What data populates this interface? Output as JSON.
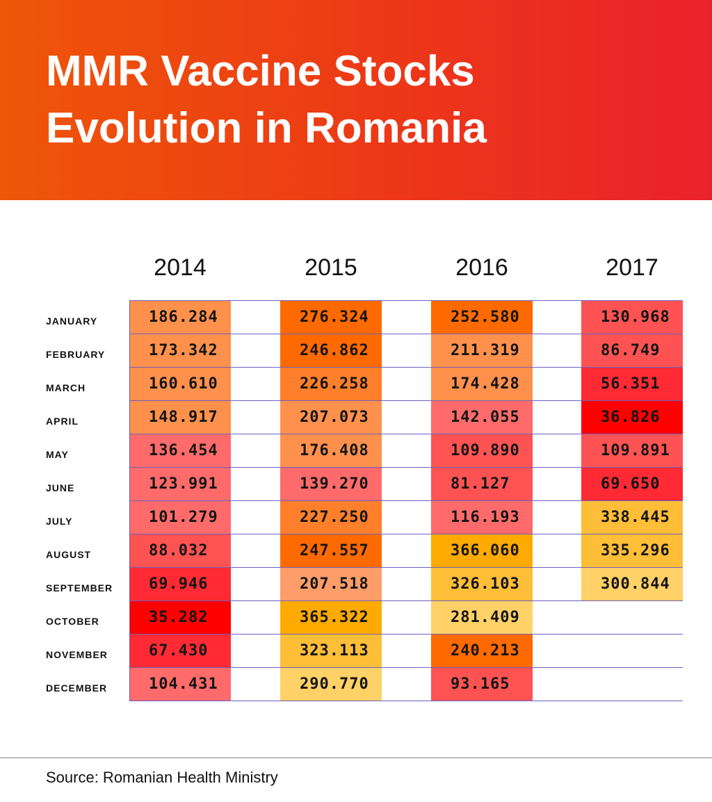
{
  "header": {
    "title_line_1": "MMR Vaccine Stocks",
    "title_line_2": "Evolution in Romania",
    "gradient_start": "#ee5609",
    "gradient_end": "#ea212b"
  },
  "footer": {
    "source": "Source: Romanian Health Ministry"
  },
  "colors": {
    "very_low": "#ff0000",
    "low": "#ff2a33",
    "medium_low": "#ff5353",
    "medium": "#ff6b6b",
    "medium_high": "#ff914d",
    "high": "#ff7f2a",
    "very_high": "#ff6a00",
    "restock_high": "#ffaa00",
    "restock_medium": "#ffbe38",
    "restock_low": "#ffd166",
    "light_orange": "#ff9d6a",
    "grid_line": "#6b5fbf"
  },
  "chart_data": {
    "type": "table",
    "title": "MMR Vaccine Stocks Evolution in Romania",
    "columns": [
      "2014",
      "2015",
      "2016",
      "2017"
    ],
    "rows": [
      "JANUARY",
      "FEBRUARY",
      "MARCH",
      "APRIL",
      "MAY",
      "JUNE",
      "JULY",
      "AUGUST",
      "SEPTEMBER",
      "OCTOBER",
      "NOVEMBER",
      "DECEMBER"
    ],
    "values": [
      [
        "186.284",
        "276.324",
        "252.580",
        "130.968"
      ],
      [
        "173.342",
        "246.862",
        "211.319",
        "86.749"
      ],
      [
        "160.610",
        "226.258",
        "174.428",
        "56.351"
      ],
      [
        "148.917",
        "207.073",
        "142.055",
        "36.826"
      ],
      [
        "136.454",
        "176.408",
        "109.890",
        "109.891"
      ],
      [
        "123.991",
        "139.270",
        "81.127",
        "69.650"
      ],
      [
        "101.279",
        "227.250",
        "116.193",
        "338.445"
      ],
      [
        "88.032",
        "247.557",
        "366.060",
        "335.296"
      ],
      [
        "69.946",
        "207.518",
        "326.103",
        "300.844"
      ],
      [
        "35.282",
        "365.322",
        "281.409",
        null
      ],
      [
        "67.430",
        "323.113",
        "240.213",
        null
      ],
      [
        "104.431",
        "290.770",
        "93.165",
        null
      ]
    ],
    "cell_colors": [
      [
        "#ff914d",
        "#ff6a00",
        "#ff6a00",
        "#ff5353"
      ],
      [
        "#ff914d",
        "#ff6a00",
        "#ff914d",
        "#ff5353"
      ],
      [
        "#ff914d",
        "#ff7f2a",
        "#ff914d",
        "#ff2a33"
      ],
      [
        "#ff914d",
        "#ff914d",
        "#ff6b6b",
        "#ff0000"
      ],
      [
        "#ff6b6b",
        "#ff914d",
        "#ff5353",
        "#ff5353"
      ],
      [
        "#ff6b6b",
        "#ff6b6b",
        "#ff5353",
        "#ff2a33"
      ],
      [
        "#ff6b6b",
        "#ff7f2a",
        "#ff6b6b",
        "#ffbe38"
      ],
      [
        "#ff5353",
        "#ff6a00",
        "#ffaa00",
        "#ffbe38"
      ],
      [
        "#ff2a33",
        "#ff9d6a",
        "#ffbe38",
        "#ffd166"
      ],
      [
        "#ff0000",
        "#ffaa00",
        "#ffd166",
        null
      ],
      [
        "#ff2a33",
        "#ffbe38",
        "#ff6a00",
        null
      ],
      [
        "#ff6b6b",
        "#ffd166",
        "#ff5353",
        null
      ]
    ],
    "source": "Romanian Health Ministry"
  }
}
